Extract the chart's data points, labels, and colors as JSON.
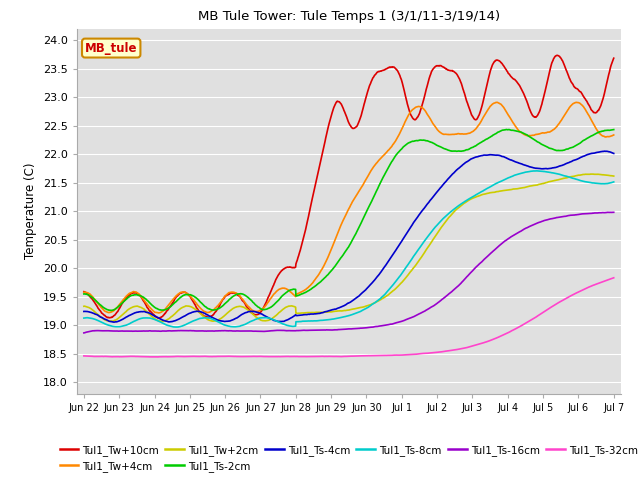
{
  "title": "MB Tule Tower: Tule Temps 1 (3/1/11-3/19/14)",
  "ylabel": "Temperature (C)",
  "ylim": [
    17.8,
    24.2
  ],
  "yticks": [
    18.0,
    18.5,
    19.0,
    19.5,
    20.0,
    20.5,
    21.0,
    21.5,
    22.0,
    22.5,
    23.0,
    23.5,
    24.0
  ],
  "xlabel_dates": [
    "Jun 22",
    "Jun 23",
    "Jun 24",
    "Jun 25",
    "Jun 26",
    "Jun 27",
    "Jun 28",
    "Jun 29",
    "Jun 30",
    "Jul 1",
    "Jul 2",
    "Jul 3",
    "Jul 4",
    "Jul 5",
    "Jul 6",
    "Jul 7"
  ],
  "legend_box_label": "MB_tule",
  "legend_box_color": "#cc0000",
  "series": [
    {
      "label": "Tul1_Tw+10cm",
      "color": "#dd0000",
      "lw": 1.2
    },
    {
      "label": "Tul1_Tw+4cm",
      "color": "#ff8800",
      "lw": 1.2
    },
    {
      "label": "Tul1_Tw+2cm",
      "color": "#cccc00",
      "lw": 1.2
    },
    {
      "label": "Tul1_Ts-2cm",
      "color": "#00cc00",
      "lw": 1.2
    },
    {
      "label": "Tul1_Ts-4cm",
      "color": "#0000cc",
      "lw": 1.2
    },
    {
      "label": "Tul1_Ts-8cm",
      "color": "#00cccc",
      "lw": 1.2
    },
    {
      "label": "Tul1_Ts-16cm",
      "color": "#9900cc",
      "lw": 1.2
    },
    {
      "label": "Tul1_Ts-32cm",
      "color": "#ff44cc",
      "lw": 1.2
    }
  ],
  "background_color": "#e0e0e0",
  "grid_color": "#ffffff"
}
